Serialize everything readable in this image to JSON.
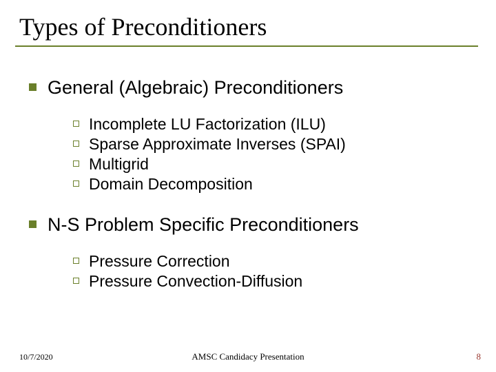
{
  "colors": {
    "accent": "#6a7f2a",
    "page_number": "#9a3b32",
    "text": "#000000",
    "background": "#ffffff"
  },
  "title": "Types of Preconditioners",
  "sections": [
    {
      "heading": "General (Algebraic) Preconditioners",
      "items": [
        "Incomplete LU Factorization (ILU)",
        "Sparse Approximate Inverses (SPAI)",
        "Multigrid",
        "Domain Decomposition"
      ]
    },
    {
      "heading": "N-S Problem Specific Preconditioners",
      "items": [
        "Pressure Correction",
        "Pressure Convection-Diffusion"
      ]
    }
  ],
  "footer": {
    "date": "10/7/2020",
    "center": "AMSC Candidacy Presentation",
    "page": "8"
  },
  "typography": {
    "title_fontsize": 36,
    "lvl1_fontsize": 27,
    "lvl2_fontsize": 23,
    "footer_fontsize": 12
  }
}
